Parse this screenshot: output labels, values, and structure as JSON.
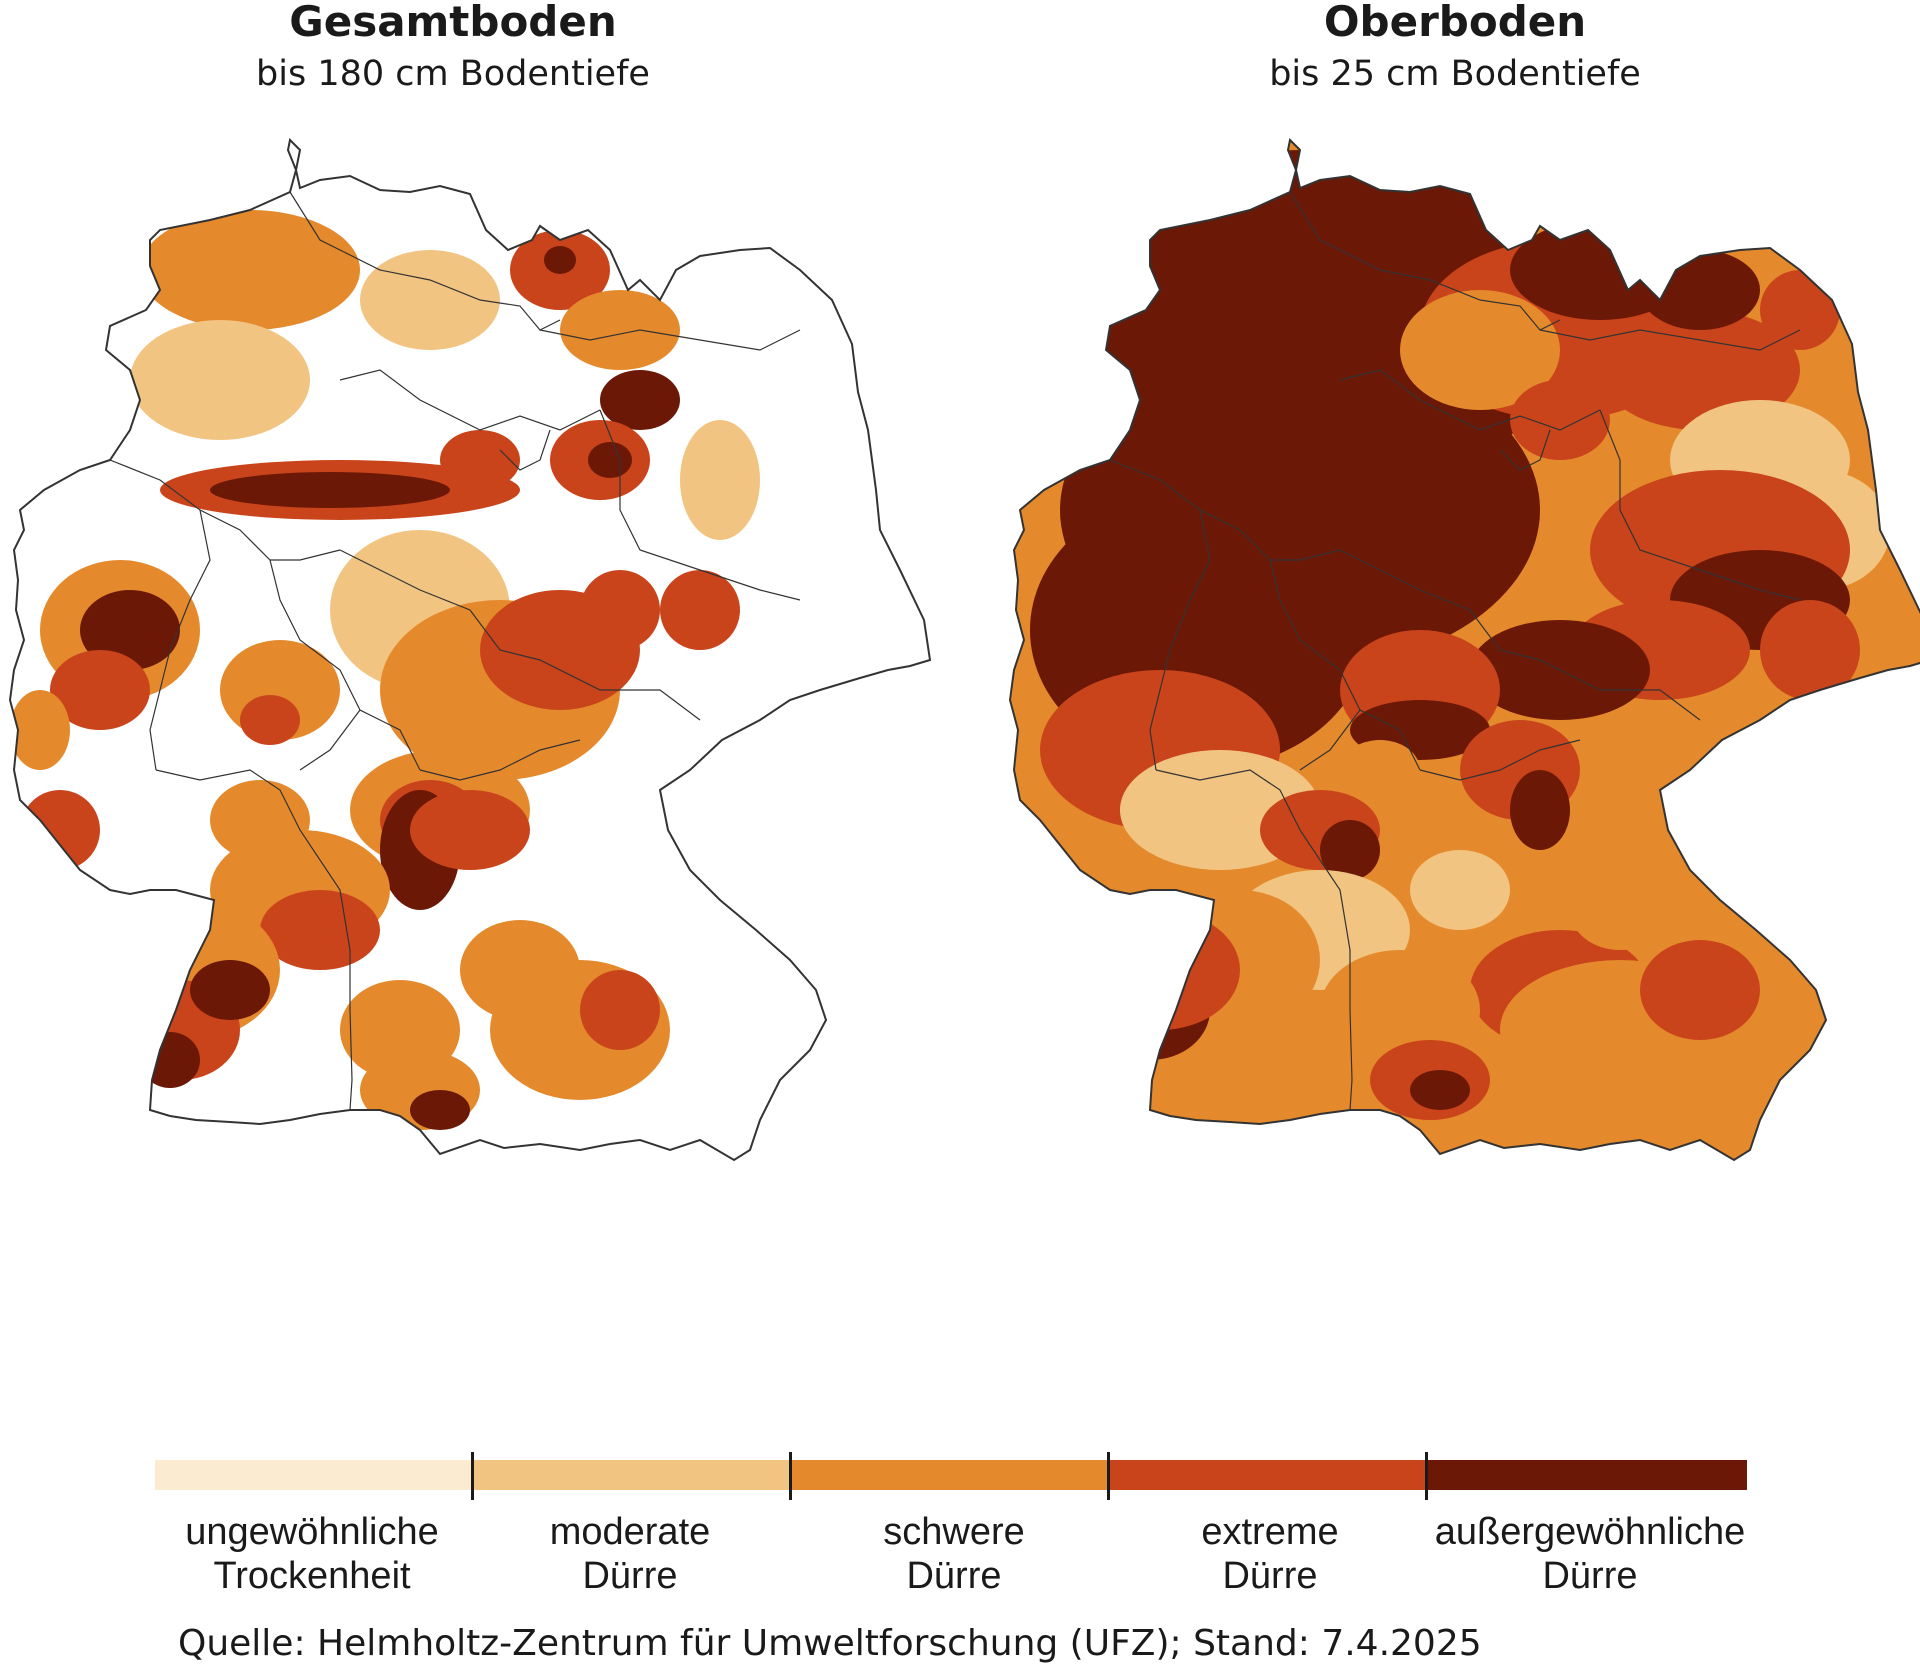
{
  "panels": [
    {
      "title": "Gesamtboden",
      "subtitle": "bis 180 cm Bodentiefe"
    },
    {
      "title": "Oberboden",
      "subtitle": "bis 25 cm Bodentiefe"
    }
  ],
  "legend": [
    {
      "line1": "ungewöhnliche",
      "line2": "Trockenheit",
      "color": "#fbebd0"
    },
    {
      "line1": "moderate",
      "line2": "Dürre",
      "color": "#f1c482"
    },
    {
      "line1": "schwere",
      "line2": "Dürre",
      "color": "#e58a2c"
    },
    {
      "line1": "extreme",
      "line2": "Dürre",
      "color": "#c9441b"
    },
    {
      "line1": "außergewöhnliche",
      "line2": "Dürre",
      "color": "#6b1806"
    }
  ],
  "source": "Quelle: Helmholtz-Zentrum für Umweltforschung (UFZ); Stand: 7.4.2025",
  "colors": {
    "background": "#ffffff",
    "border": "#333333",
    "no_drought": "#ffffff"
  }
}
